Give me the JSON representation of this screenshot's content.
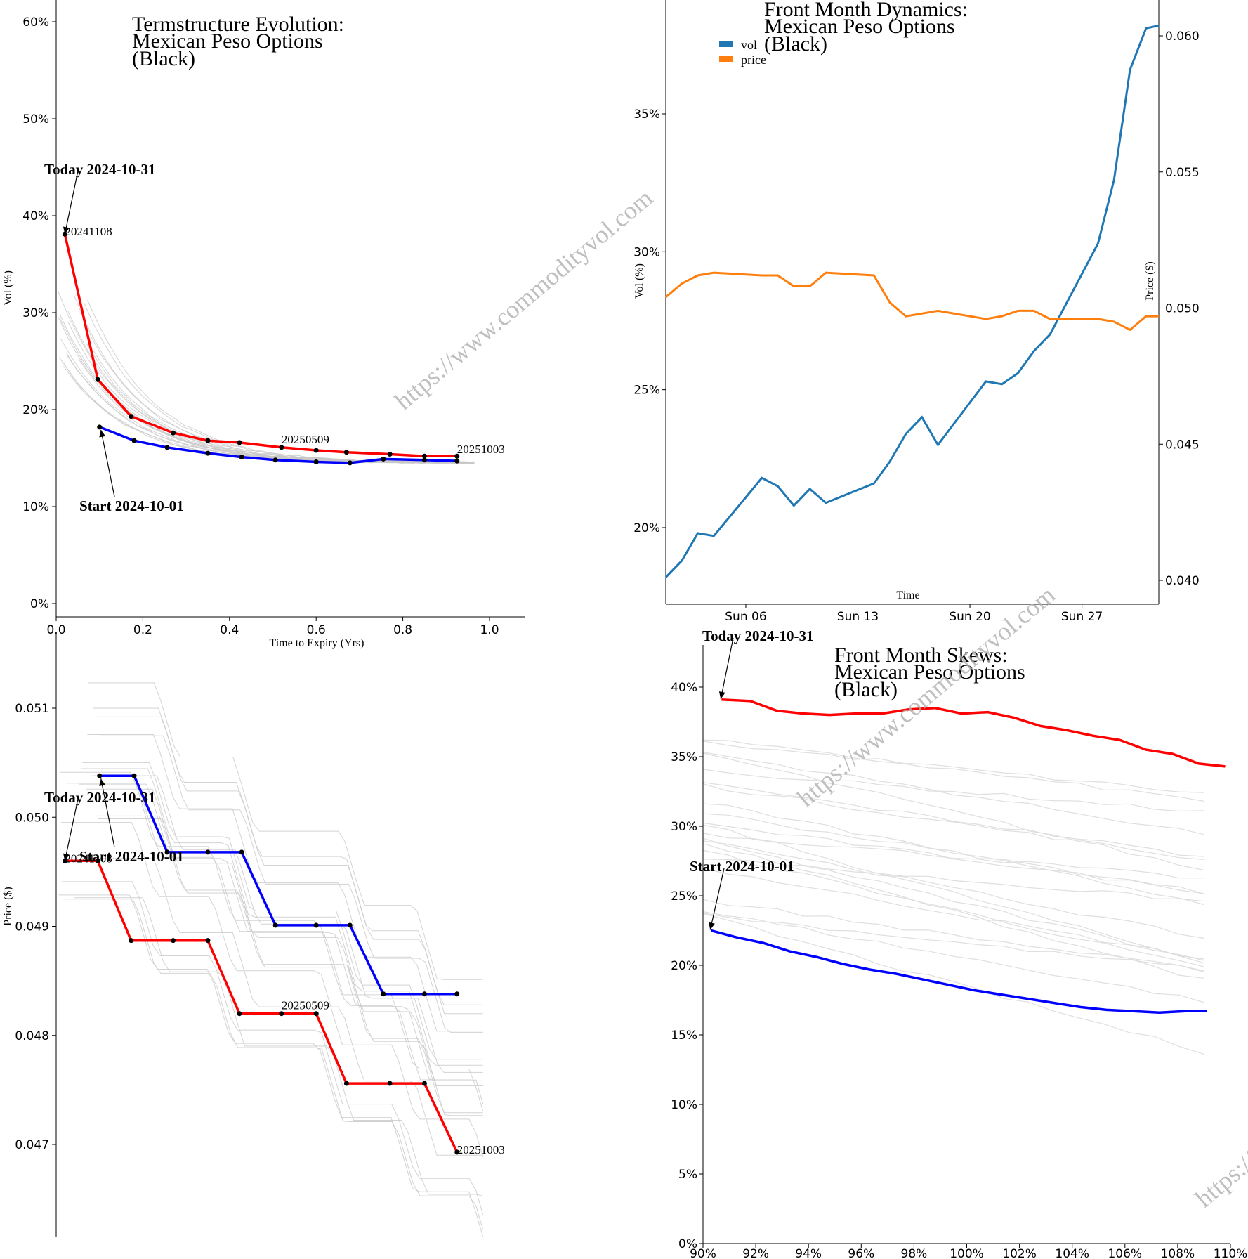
{
  "colors": {
    "today": "#ff0000",
    "start": "#0000ff",
    "history": "#c8c8c8",
    "vol": "#1f77b4",
    "price": "#ff7f0e",
    "marker": "#000000"
  },
  "watermark": "https://www.commodityvol.com",
  "chart_data": [
    {
      "id": "termstructure",
      "type": "line",
      "title_lines": [
        "Termstructure Evolution:",
        "Mexican Peso Options",
        "(Black)"
      ],
      "xlabel": "Time to Expiry (Yrs)",
      "ylabel": "Vol (%)",
      "xlim": [
        0,
        1.08
      ],
      "ylim": [
        0,
        0.62
      ],
      "xticks": [
        0.0,
        0.2,
        0.4,
        0.6,
        0.8,
        1.0
      ],
      "xtick_labels": [
        "0.0",
        "0.2",
        "0.4",
        "0.6",
        "0.8",
        "1.0"
      ],
      "yticks": [
        0,
        0.1,
        0.2,
        0.3,
        0.4,
        0.5,
        0.6
      ],
      "ytick_labels": [
        "0%",
        "10%",
        "20%",
        "30%",
        "40%",
        "50%",
        "60%"
      ],
      "series": [
        {
          "name": "Today 2024-10-31",
          "role": "today",
          "x": [
            0.02,
            0.096,
            0.173,
            0.27,
            0.35,
            0.423,
            0.52,
            0.6,
            0.67,
            0.77,
            0.85,
            0.925
          ],
          "y": [
            0.381,
            0.231,
            0.193,
            0.176,
            0.168,
            0.166,
            0.161,
            0.158,
            0.156,
            0.154,
            0.152,
            0.152
          ]
        },
        {
          "name": "Start 2024-10-01",
          "role": "start",
          "x": [
            0.1,
            0.18,
            0.256,
            0.35,
            0.428,
            0.506,
            0.6,
            0.678,
            0.755,
            0.85,
            0.925
          ],
          "y": [
            0.182,
            0.168,
            0.161,
            0.155,
            0.151,
            0.148,
            0.146,
            0.145,
            0.149,
            0.148,
            0.147
          ]
        }
      ],
      "history_count": 20,
      "point_labels": [
        {
          "text": "20241108",
          "x": 0.02,
          "y": 0.381
        },
        {
          "text": "20250509",
          "x": 0.52,
          "y": 0.161
        },
        {
          "text": "20251003",
          "x": 0.925,
          "y": 0.152
        }
      ],
      "annotations": [
        {
          "text": "Today 2024-10-31",
          "target_x": 0.02,
          "target_y": 0.381
        },
        {
          "text": "Start 2024-10-01",
          "target_x": 0.1,
          "target_y": 0.182
        }
      ]
    },
    {
      "id": "dynamics",
      "type": "line",
      "title_lines": [
        "Front Month Dynamics:",
        "Mexican Peso Options",
        "(Black)"
      ],
      "xlabel": "Time",
      "ylabel": "Vol (%)",
      "ylabel2": "Price ($)",
      "xlim": [
        1,
        31.8
      ],
      "ylim": [
        0.172,
        0.392
      ],
      "ylim2": [
        0.0391,
        0.0612
      ],
      "xticks": [
        6,
        13,
        20,
        27
      ],
      "xtick_labels": [
        "Sun 06",
        "Sun 13",
        "Sun 20",
        "Sun 27"
      ],
      "yticks": [
        0.2,
        0.25,
        0.3,
        0.35
      ],
      "ytick_labels": [
        "20%",
        "25%",
        "30%",
        "35%"
      ],
      "yticks2": [
        0.04,
        0.045,
        0.05,
        0.055,
        0.06
      ],
      "ytick_labels2": [
        "0.040",
        "0.045",
        "0.050",
        "0.055",
        "0.060"
      ],
      "legend": [
        {
          "label": "vol",
          "color_key": "vol"
        },
        {
          "label": "price",
          "color_key": "price"
        }
      ],
      "series": [
        {
          "name": "vol",
          "axis": "left",
          "x": [
            1,
            2,
            3,
            4,
            7,
            8,
            9,
            10,
            11,
            14,
            15,
            16,
            17,
            18,
            21,
            22,
            23,
            24,
            25,
            28,
            29,
            30,
            31,
            31.8
          ],
          "y": [
            0.182,
            0.188,
            0.198,
            0.197,
            0.218,
            0.215,
            0.208,
            0.214,
            0.209,
            0.216,
            0.224,
            0.234,
            0.24,
            0.23,
            0.253,
            0.252,
            0.256,
            0.264,
            0.27,
            0.303,
            0.326,
            0.366,
            0.381,
            0.382
          ]
        },
        {
          "name": "price",
          "axis": "right",
          "x": [
            1,
            2,
            3,
            4,
            7,
            8,
            9,
            10,
            11,
            14,
            15,
            16,
            17,
            18,
            21,
            22,
            23,
            24,
            25,
            28,
            29,
            30,
            31,
            31.8
          ],
          "y": [
            0.0504,
            0.0509,
            0.0512,
            0.0513,
            0.0512,
            0.0512,
            0.0508,
            0.0508,
            0.0513,
            0.0512,
            0.0502,
            0.0497,
            0.0498,
            0.0499,
            0.0496,
            0.0497,
            0.0499,
            0.0499,
            0.0496,
            0.0496,
            0.0495,
            0.0492,
            0.0497,
            0.0497
          ]
        }
      ]
    },
    {
      "id": "price_structure",
      "type": "line",
      "title_lines": [],
      "xlabel": "",
      "ylabel": "Price ($)",
      "xlim": [
        0,
        1.08
      ],
      "ylim": [
        0.0462,
        0.0516
      ],
      "yticks": [
        0.047,
        0.048,
        0.049,
        0.05,
        0.051
      ],
      "ytick_labels": [
        "0.047",
        "0.048",
        "0.049",
        "0.050",
        "0.051"
      ],
      "series": [
        {
          "name": "Today 2024-10-31",
          "role": "today",
          "x": [
            0.02,
            0.096,
            0.173,
            0.27,
            0.35,
            0.423,
            0.52,
            0.6,
            0.67,
            0.77,
            0.85,
            0.925
          ],
          "y": [
            0.0496,
            0.0496,
            0.04887,
            0.04887,
            0.04887,
            0.0482,
            0.0482,
            0.0482,
            0.04756,
            0.04756,
            0.04756,
            0.04693
          ]
        },
        {
          "name": "Start 2024-10-01",
          "role": "start",
          "x": [
            0.1,
            0.18,
            0.256,
            0.35,
            0.428,
            0.506,
            0.6,
            0.678,
            0.755,
            0.85,
            0.925
          ],
          "y": [
            0.05038,
            0.05038,
            0.04968,
            0.04968,
            0.04968,
            0.04901,
            0.04901,
            0.04901,
            0.04838,
            0.04838,
            0.04838
          ]
        }
      ],
      "history_count": 20,
      "point_labels": [
        {
          "text": "20241108",
          "x": 0.02,
          "y": 0.0496
        },
        {
          "text": "20250509",
          "x": 0.52,
          "y": 0.0482
        },
        {
          "text": "20251003",
          "x": 0.925,
          "y": 0.04693
        }
      ],
      "annotations": [
        {
          "text": "Today 2024-10-31",
          "target_x": 0.02,
          "target_y": 0.0496
        },
        {
          "text": "Start 2024-10-01",
          "target_x": 0.1,
          "target_y": 0.05038
        }
      ]
    },
    {
      "id": "skews",
      "type": "line",
      "title_lines": [
        "Front Month Skews:",
        "Mexican Peso Options",
        "(Black)"
      ],
      "xlabel": "",
      "ylabel": "",
      "xlim": [
        0.9,
        1.1
      ],
      "ylim": [
        0,
        0.43
      ],
      "xticks": [
        0.9,
        0.92,
        0.94,
        0.96,
        0.98,
        1.0,
        1.02,
        1.04,
        1.06,
        1.08,
        1.1
      ],
      "xtick_labels": [
        "90%",
        "92%",
        "94%",
        "96%",
        "98%",
        "100%",
        "102%",
        "104%",
        "106%",
        "108%",
        "110%"
      ],
      "yticks": [
        0,
        0.05,
        0.1,
        0.15,
        0.2,
        0.25,
        0.3,
        0.35,
        0.4
      ],
      "ytick_labels": [
        "0%",
        "5%",
        "10%",
        "15%",
        "20%",
        "25%",
        "30%",
        "35%",
        "40%"
      ],
      "series": [
        {
          "name": "Today 2024-10-31",
          "role": "today",
          "x": [
            0.907,
            0.918,
            0.928,
            0.938,
            0.948,
            0.958,
            0.968,
            0.978,
            0.988,
            0.998,
            1.008,
            1.018,
            1.028,
            1.038,
            1.048,
            1.058,
            1.068,
            1.078,
            1.088,
            1.098
          ],
          "y": [
            0.391,
            0.39,
            0.383,
            0.381,
            0.38,
            0.381,
            0.381,
            0.384,
            0.385,
            0.381,
            0.382,
            0.378,
            0.372,
            0.369,
            0.365,
            0.362,
            0.355,
            0.352,
            0.345,
            0.343
          ]
        },
        {
          "name": "Start 2024-10-01",
          "role": "start",
          "x": [
            0.903,
            0.913,
            0.923,
            0.933,
            0.943,
            0.953,
            0.963,
            0.973,
            0.983,
            0.993,
            1.003,
            1.013,
            1.023,
            1.033,
            1.043,
            1.053,
            1.063,
            1.073,
            1.083,
            1.091
          ],
          "y": [
            0.225,
            0.22,
            0.216,
            0.21,
            0.206,
            0.201,
            0.197,
            0.194,
            0.19,
            0.186,
            0.182,
            0.179,
            0.176,
            0.173,
            0.17,
            0.168,
            0.167,
            0.166,
            0.167,
            0.167
          ]
        }
      ],
      "history_count": 22,
      "annotations": [
        {
          "text": "Today 2024-10-31",
          "target_x": 0.907,
          "target_y": 0.391
        },
        {
          "text": "Start 2024-10-01",
          "target_x": 0.903,
          "target_y": 0.225
        }
      ]
    }
  ]
}
